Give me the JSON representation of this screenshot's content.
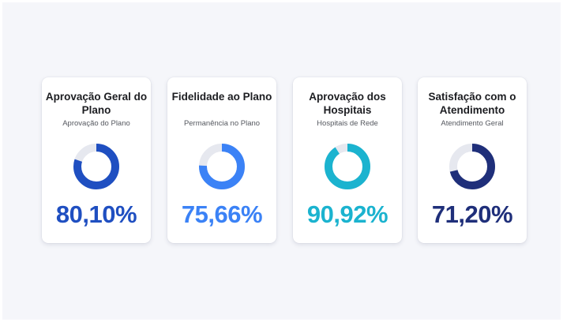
{
  "cards": [
    {
      "title": "Aprovação Geral do Plano",
      "subtitle": "Aprovação do Plano",
      "value_text": "80,10%",
      "percent": 80.1,
      "color": "#1f4fc1"
    },
    {
      "title": "Fidelidade ao Plano",
      "subtitle": "Permanência no Plano",
      "value_text": "75,66%",
      "percent": 75.66,
      "color": "#3b82f6"
    },
    {
      "title": "Aprovação dos Hospitais",
      "subtitle": "Hospitais de Rede",
      "value_text": "90,92%",
      "percent": 90.92,
      "color": "#1bb3cf"
    },
    {
      "title": "Satisfação com o Atendimento",
      "subtitle": "Atendimento Geral",
      "value_text": "71,20%",
      "percent": 71.2,
      "color": "#1f2f7a"
    }
  ],
  "track_color": "#e6e8ef"
}
